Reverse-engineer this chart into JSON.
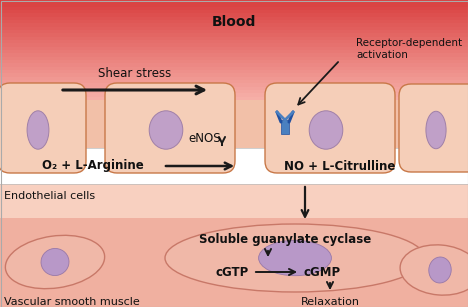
{
  "text_blood": "Blood",
  "text_shear": "Shear stress",
  "text_receptor": "Receptor-dependent\nactivation",
  "text_enos": "eNOS",
  "text_reaction": "O₂ + L-Arginine",
  "text_products": "NO + L-Citrulline",
  "text_endothelial": "Endothelial cells",
  "text_sgc": "Soluble guanylate cyclase",
  "text_cgtp": "cGTP",
  "text_cgmp": "cGMP",
  "text_relaxation": "Relaxation",
  "text_vsm": "Vascular smooth muscle",
  "col_blood_top": "#d94040",
  "col_blood_mid": "#f0b0a0",
  "col_endo_bg": "#f2c0a8",
  "col_white_band": "#ffffff",
  "col_smooth_bg": "#f0b0a0",
  "col_cell_fill": "#f5ceb8",
  "col_cell_edge": "#c87848",
  "col_nucleus": "#c0a0c8",
  "col_nucleus_edge": "#a080a8",
  "col_smooth_fill": "#f0b8a8",
  "col_smooth_edge": "#c87868",
  "col_smooth_nucleus": "#b898c8",
  "col_smooth_nucleus_edge": "#9878a8",
  "col_receptor": "#4a80c0",
  "col_arrow": "#1a1a1a",
  "col_border": "#aaaaaa"
}
